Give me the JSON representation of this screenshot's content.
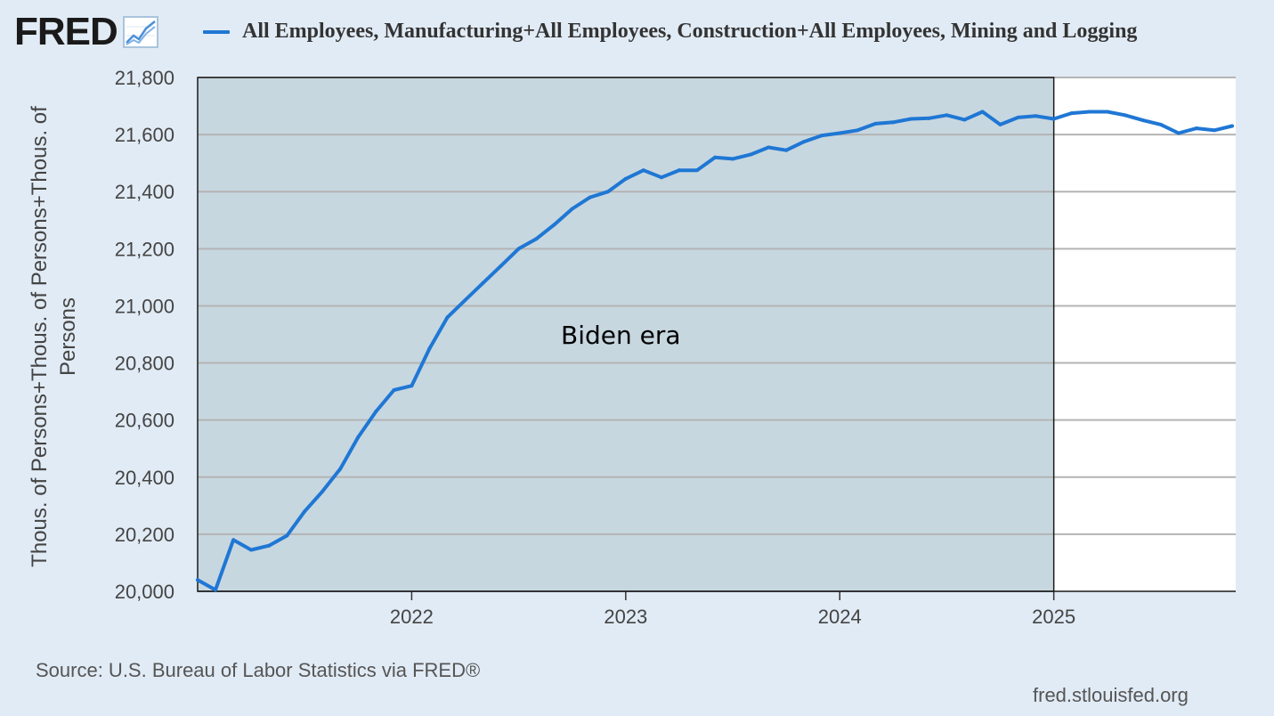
{
  "brand": {
    "wordmark": "FRED",
    "icon": "line-graph-icon"
  },
  "footer": {
    "source": "Source: U.S. Bureau of Labor Statistics via FRED®",
    "site": "fred.stlouisfed.org"
  },
  "colors": {
    "series": "#1f77d4",
    "shade": "#c7d7e0",
    "plot_bg": "#ffffff",
    "page_bg": "#e1ebf5",
    "grid": "#b4b4b4"
  },
  "chart_data": {
    "type": "line",
    "title": "",
    "xlabel": "",
    "ylabel_lines": [
      "Thous. of Persons+Thous. of Persons+Thous. of",
      "Persons"
    ],
    "ylim": [
      20000,
      21800
    ],
    "yticks": [
      20000,
      20200,
      20400,
      20600,
      20800,
      21000,
      21200,
      21400,
      21600,
      21800
    ],
    "ytick_labels": [
      "20,000",
      "20,200",
      "20,400",
      "20,600",
      "20,800",
      "21,000",
      "21,200",
      "21,400",
      "21,600",
      "21,800"
    ],
    "xlim": [
      2021.0,
      2025.85
    ],
    "xticks": [
      2022,
      2023,
      2024,
      2025
    ],
    "xtick_labels": [
      "2022",
      "2023",
      "2024",
      "2025"
    ],
    "shaded_region": {
      "x_start": 2021.0,
      "x_end": 2025.0,
      "label": "Biden era"
    },
    "series": [
      {
        "name": "All Employees, Manufacturing+All Employees, Construction+All Employees, Mining and Logging",
        "x": [
          2021.0,
          2021.083,
          2021.167,
          2021.25,
          2021.333,
          2021.417,
          2021.5,
          2021.583,
          2021.667,
          2021.75,
          2021.833,
          2021.917,
          2022.0,
          2022.083,
          2022.167,
          2022.25,
          2022.333,
          2022.417,
          2022.5,
          2022.583,
          2022.667,
          2022.75,
          2022.833,
          2022.917,
          2023.0,
          2023.083,
          2023.167,
          2023.25,
          2023.333,
          2023.417,
          2023.5,
          2023.583,
          2023.667,
          2023.75,
          2023.833,
          2023.917,
          2024.0,
          2024.083,
          2024.167,
          2024.25,
          2024.333,
          2024.417,
          2024.5,
          2024.583,
          2024.667,
          2024.75,
          2024.833,
          2024.917,
          2025.0,
          2025.083,
          2025.167,
          2025.25,
          2025.333,
          2025.417,
          2025.5,
          2025.583,
          2025.667,
          2025.75,
          2025.833
        ],
        "values": [
          20040,
          20005,
          20180,
          20145,
          20160,
          20195,
          20280,
          20350,
          20430,
          20540,
          20630,
          20705,
          20720,
          20850,
          20960,
          21020,
          21080,
          21140,
          21200,
          21235,
          21285,
          21340,
          21380,
          21400,
          21445,
          21475,
          21450,
          21475,
          21475,
          21520,
          21515,
          21530,
          21555,
          21545,
          21575,
          21597,
          21605,
          21615,
          21638,
          21643,
          21655,
          21657,
          21668,
          21652,
          21680,
          21635,
          21660,
          21665,
          21655,
          21675,
          21680,
          21680,
          21668,
          21650,
          21635,
          21605,
          21622,
          21615,
          21630
        ]
      }
    ]
  }
}
